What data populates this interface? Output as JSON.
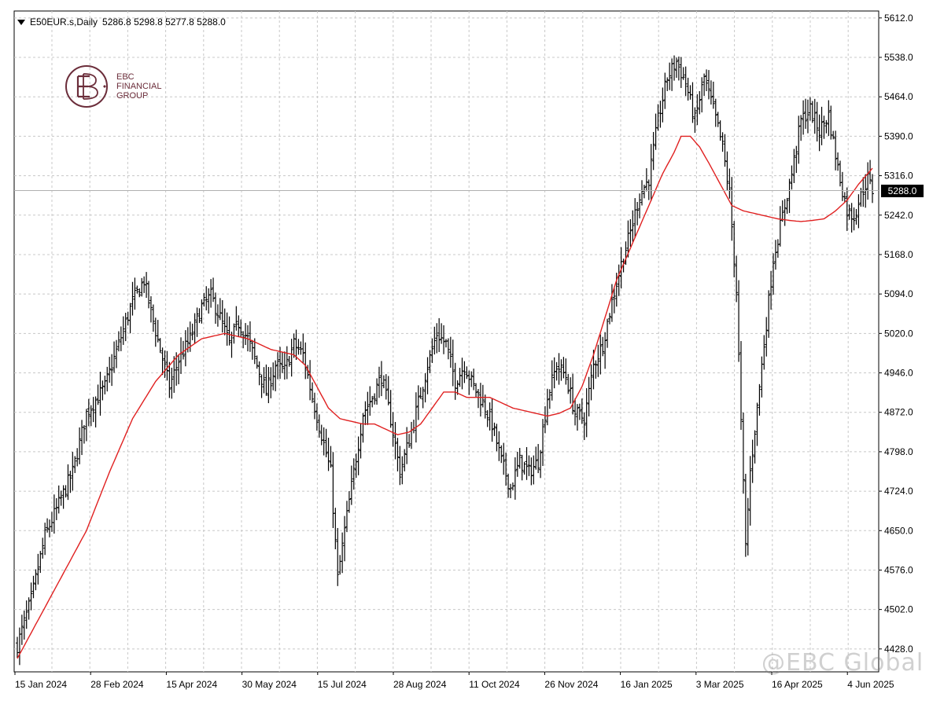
{
  "header": {
    "menu_icon": "triangle-down-icon",
    "symbol": "E50EUR.s,Daily",
    "ohlc": "5286.8 5298.8 5277.8 5288.0"
  },
  "logo": {
    "mark_icon": "ebc-monogram-icon",
    "line1": "EBC",
    "line2": "FINANCIAL",
    "line3": "GROUP"
  },
  "watermark": "@EBC Global",
  "last_price_label": "5288.0",
  "colors": {
    "background": "#ffffff",
    "grid": "#c8c8c8",
    "bars": "#000000",
    "moving_average": "#e02020",
    "last_price_line": "#b0b0b0",
    "logo": "#6b2d3a"
  },
  "chart_data": {
    "type": "ohlc",
    "symbol": "E50EUR.s",
    "timeframe": "Daily",
    "ylim": [
      4385,
      5625
    ],
    "y_ticks": [
      4428.0,
      4502.0,
      4576.0,
      4650.0,
      4724.0,
      4798.0,
      4872.0,
      4946.0,
      5020.0,
      5094.0,
      5168.0,
      5242.0,
      5316.0,
      5390.0,
      5464.0,
      5538.0,
      5612.0
    ],
    "x_tick_labels": [
      "15 Jan 2024",
      "28 Feb 2024",
      "15 Apr 2024",
      "30 May 2024",
      "15 Jul 2024",
      "28 Aug 2024",
      "11 Oct 2024",
      "26 Nov 2024",
      "16 Jan 2025",
      "3 Mar 2025",
      "16 Apr 2025",
      "4 Jun 2025"
    ],
    "x_tick_positions": [
      0,
      32,
      64,
      96,
      128,
      160,
      192,
      224,
      256,
      288,
      320,
      352
    ],
    "bar_count": 372,
    "last_price": 5288.0,
    "close_anchors": [
      [
        0,
        4435
      ],
      [
        6,
        4520
      ],
      [
        12,
        4640
      ],
      [
        18,
        4700
      ],
      [
        24,
        4760
      ],
      [
        30,
        4870
      ],
      [
        38,
        4920
      ],
      [
        44,
        5000
      ],
      [
        50,
        5080
      ],
      [
        55,
        5120
      ],
      [
        58,
        5060
      ],
      [
        62,
        4990
      ],
      [
        66,
        4920
      ],
      [
        70,
        4970
      ],
      [
        75,
        5010
      ],
      [
        80,
        5070
      ],
      [
        84,
        5090
      ],
      [
        88,
        5050
      ],
      [
        92,
        5000
      ],
      [
        96,
        5040
      ],
      [
        100,
        5010
      ],
      [
        104,
        4960
      ],
      [
        108,
        4910
      ],
      [
        112,
        4960
      ],
      [
        116,
        4950
      ],
      [
        120,
        5000
      ],
      [
        124,
        4980
      ],
      [
        128,
        4900
      ],
      [
        132,
        4830
      ],
      [
        136,
        4760
      ],
      [
        139,
        4560
      ],
      [
        142,
        4650
      ],
      [
        146,
        4760
      ],
      [
        150,
        4870
      ],
      [
        154,
        4900
      ],
      [
        158,
        4940
      ],
      [
        162,
        4860
      ],
      [
        166,
        4760
      ],
      [
        170,
        4820
      ],
      [
        174,
        4890
      ],
      [
        178,
        4960
      ],
      [
        182,
        5020
      ],
      [
        186,
        5000
      ],
      [
        190,
        4930
      ],
      [
        194,
        4960
      ],
      [
        198,
        4920
      ],
      [
        202,
        4890
      ],
      [
        206,
        4850
      ],
      [
        210,
        4780
      ],
      [
        214,
        4730
      ],
      [
        218,
        4780
      ],
      [
        222,
        4760
      ],
      [
        226,
        4780
      ],
      [
        230,
        4900
      ],
      [
        234,
        4960
      ],
      [
        238,
        4940
      ],
      [
        242,
        4870
      ],
      [
        246,
        4860
      ],
      [
        250,
        4960
      ],
      [
        254,
        5000
      ],
      [
        258,
        5080
      ],
      [
        262,
        5150
      ],
      [
        266,
        5210
      ],
      [
        270,
        5280
      ],
      [
        274,
        5310
      ],
      [
        278,
        5420
      ],
      [
        282,
        5500
      ],
      [
        286,
        5530
      ],
      [
        290,
        5490
      ],
      [
        294,
        5420
      ],
      [
        298,
        5500
      ],
      [
        302,
        5440
      ],
      [
        306,
        5370
      ],
      [
        309,
        5280
      ],
      [
        312,
        5100
      ],
      [
        314,
        4850
      ],
      [
        316,
        4620
      ],
      [
        318,
        4760
      ],
      [
        321,
        4880
      ],
      [
        324,
        5000
      ],
      [
        328,
        5160
      ],
      [
        332,
        5240
      ],
      [
        336,
        5320
      ],
      [
        340,
        5420
      ],
      [
        344,
        5440
      ],
      [
        348,
        5400
      ],
      [
        352,
        5430
      ],
      [
        356,
        5330
      ],
      [
        360,
        5250
      ],
      [
        363,
        5240
      ],
      [
        366,
        5280
      ],
      [
        369,
        5310
      ],
      [
        371,
        5288
      ]
    ],
    "ma_anchors": [
      [
        0,
        4410
      ],
      [
        10,
        4490
      ],
      [
        20,
        4570
      ],
      [
        30,
        4650
      ],
      [
        40,
        4760
      ],
      [
        50,
        4860
      ],
      [
        60,
        4930
      ],
      [
        70,
        4980
      ],
      [
        80,
        5010
      ],
      [
        90,
        5020
      ],
      [
        100,
        5010
      ],
      [
        110,
        4990
      ],
      [
        120,
        4980
      ],
      [
        125,
        4960
      ],
      [
        130,
        4920
      ],
      [
        135,
        4880
      ],
      [
        140,
        4860
      ],
      [
        145,
        4855
      ],
      [
        150,
        4850
      ],
      [
        155,
        4850
      ],
      [
        160,
        4840
      ],
      [
        165,
        4830
      ],
      [
        170,
        4835
      ],
      [
        175,
        4850
      ],
      [
        180,
        4880
      ],
      [
        185,
        4910
      ],
      [
        190,
        4910
      ],
      [
        195,
        4900
      ],
      [
        200,
        4900
      ],
      [
        205,
        4900
      ],
      [
        210,
        4890
      ],
      [
        215,
        4880
      ],
      [
        220,
        4875
      ],
      [
        225,
        4870
      ],
      [
        230,
        4865
      ],
      [
        235,
        4870
      ],
      [
        240,
        4880
      ],
      [
        245,
        4920
      ],
      [
        250,
        4980
      ],
      [
        255,
        5050
      ],
      [
        260,
        5120
      ],
      [
        265,
        5170
      ],
      [
        270,
        5220
      ],
      [
        275,
        5270
      ],
      [
        280,
        5320
      ],
      [
        285,
        5360
      ],
      [
        288,
        5390
      ],
      [
        292,
        5390
      ],
      [
        296,
        5370
      ],
      [
        300,
        5340
      ],
      [
        305,
        5300
      ],
      [
        310,
        5260
      ],
      [
        315,
        5250
      ],
      [
        320,
        5245
      ],
      [
        325,
        5240
      ],
      [
        330,
        5235
      ],
      [
        335,
        5232
      ],
      [
        340,
        5230
      ],
      [
        345,
        5232
      ],
      [
        350,
        5235
      ],
      [
        355,
        5250
      ],
      [
        360,
        5270
      ],
      [
        365,
        5300
      ],
      [
        371,
        5330
      ]
    ],
    "ranges_note": ""
  }
}
